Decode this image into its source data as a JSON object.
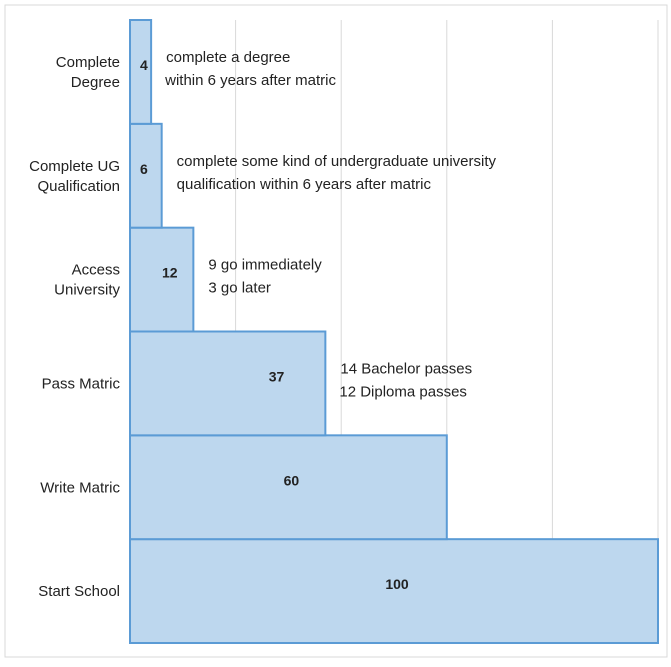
{
  "chart_data": {
    "type": "bar",
    "orientation": "horizontal",
    "categories": [
      "Start School",
      "Write Matric",
      "Pass Matric",
      "Access University",
      "Complete UG Qualification",
      "Complete Degree"
    ],
    "category_display": [
      [
        "Start School"
      ],
      [
        "Write Matric"
      ],
      [
        "Pass Matric"
      ],
      [
        "Access",
        "University"
      ],
      [
        "Complete UG",
        "Qualification"
      ],
      [
        "Complete",
        "Degree"
      ]
    ],
    "values": [
      100,
      60,
      37,
      12,
      6,
      4
    ],
    "annotations": [
      [],
      [],
      [
        "14 Bachelor passes",
        "12 Diploma passes"
      ],
      [
        "9 go immediately",
        "3 go later"
      ],
      [
        "complete some kind of undergraduate university",
        "qualification within 6 years after matric"
      ],
      [
        "complete a degree",
        "within 6 years after matric"
      ]
    ],
    "xlim": [
      0,
      100
    ],
    "grid": true,
    "colors": {
      "bar_fill": "#bdd7ee",
      "bar_stroke": "#5b9bd5",
      "grid": "#d9d9d9",
      "frame": "#d9d9d9"
    }
  }
}
